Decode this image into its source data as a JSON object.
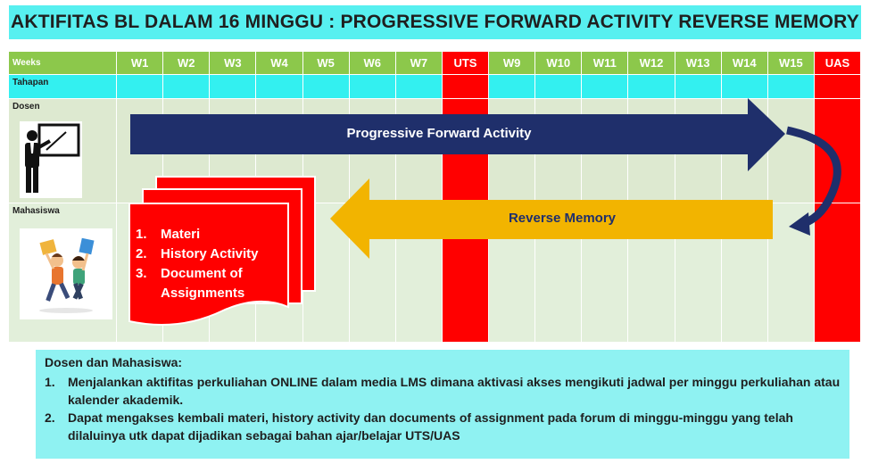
{
  "title": "AKTIFITAS BL DALAM 16 MINGGU : PROGRESSIVE FORWARD ACTIVITY REVERSE MEMORY",
  "table": {
    "weeks_label": "Weeks",
    "tahapan_label": "Tahapan",
    "weeks": [
      "W1",
      "W2",
      "W3",
      "W4",
      "W5",
      "W6",
      "W7",
      "UTS",
      "W9",
      "W10",
      "W11",
      "W12",
      "W13",
      "W14",
      "W15",
      "UAS"
    ],
    "highlight_weeks": [
      "UTS",
      "UAS"
    ],
    "rows": {
      "dosen": "Dosen",
      "mahasiswa": "Mahasiswa"
    }
  },
  "arrows": {
    "forward": "Progressive Forward Activity",
    "reverse": "Reverse Memory"
  },
  "document": {
    "items": [
      {
        "num": "1.",
        "label": "Materi"
      },
      {
        "num": "2.",
        "label": "History Activity"
      },
      {
        "num": "3.",
        "label": "Document of"
      },
      {
        "num": "",
        "label": "Assignments"
      }
    ]
  },
  "note": {
    "title": "Dosen dan Mahasiswa:",
    "items": [
      {
        "num": "1.",
        "text": "Menjalankan aktifitas perkuliahan ONLINE dalam media LMS dimana aktivasi akses mengikuti  jadwal per minggu perkuliahan atau kalender akademik."
      },
      {
        "num": "2.",
        "text": "Dapat mengakses kembali materi, history activity dan documents of assignment pada forum di minggu-minggu yang telah dilaluinya utk dapat dijadikan sebagai bahan ajar/belajar UTS/UAS"
      }
    ]
  },
  "colors": {
    "title_bg": "#57f0f0",
    "week_header": "#8cc84b",
    "tahapan_row": "#33f0f0",
    "exam_column": "#ff0000",
    "forward_arrow": "#1f2f6b",
    "reverse_arrow": "#f2b400",
    "document": "#ff0000",
    "note_bg": "#8ff2f2"
  },
  "icons": {
    "dosen": "teacher-at-board-icon",
    "mahasiswa": "jumping-students-illustration"
  }
}
